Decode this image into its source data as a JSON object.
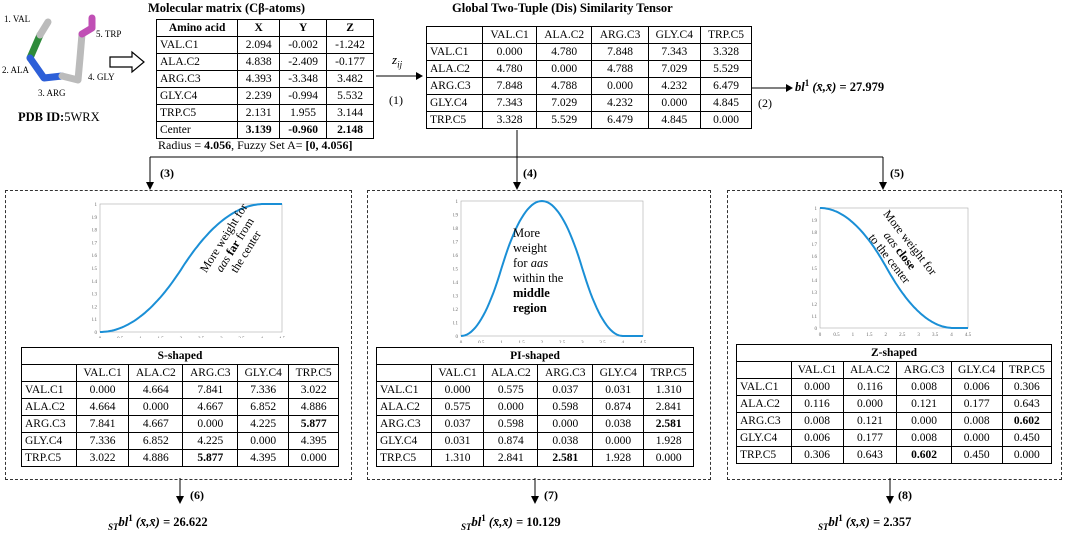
{
  "molecule": {
    "pdb_label": "PDB ID:",
    "pdb_id": "5WRX",
    "residues": [
      "1. VAL",
      "2. ALA",
      "3. ARG",
      "4. GLY",
      "5. TRP"
    ]
  },
  "molecular_matrix": {
    "title": "Molecular matrix (Cβ-atoms)",
    "headers": [
      "Amino acid",
      "X",
      "Y",
      "Z"
    ],
    "rows": [
      [
        "VAL.C1",
        "2.094",
        "-0.002",
        "-1.242"
      ],
      [
        "ALA.C2",
        "4.838",
        "-2.409",
        "-0.177"
      ],
      [
        "ARG.C3",
        "4.393",
        "-3.348",
        "3.482"
      ],
      [
        "GLY.C4",
        "2.239",
        "-0.994",
        "5.532"
      ],
      [
        "TRP.C5",
        "2.131",
        "1.955",
        "3.144"
      ],
      [
        "Center",
        "3.139",
        "-0.960",
        "2.148"
      ]
    ],
    "radius_label": "Radius = ",
    "radius_value": "4.056",
    "fuzzy_label": ", Fuzzy Set A= ",
    "fuzzy_value": "[0, 4.056]"
  },
  "zij_label": "z",
  "zij_sub": "ij",
  "step1": "(1)",
  "step2": "(2)",
  "tensor": {
    "title": "Global Two-Tuple (Dis) Similarity Tensor",
    "headers": [
      "",
      "VAL.C1",
      "ALA.C2",
      "ARG.C3",
      "GLY.C4",
      "TRP.C5"
    ],
    "rows": [
      [
        "VAL.C1",
        "0.000",
        "4.780",
        "7.848",
        "7.343",
        "3.328"
      ],
      [
        "ALA.C2",
        "4.780",
        "0.000",
        "4.788",
        "7.029",
        "5.529"
      ],
      [
        "ARG.C3",
        "7.848",
        "4.788",
        "0.000",
        "4.232",
        "6.479"
      ],
      [
        "GLY.C4",
        "7.343",
        "7.029",
        "4.232",
        "0.000",
        "4.845"
      ],
      [
        "TRP.C5",
        "3.328",
        "5.529",
        "6.479",
        "4.845",
        "0.000"
      ]
    ]
  },
  "global_bl": {
    "prefix": "bl",
    "sup": "1",
    "args": " (x̄,x̄) = ",
    "value": "27.979"
  },
  "panels": [
    {
      "step": "(3)",
      "annotation": [
        "More weight for",
        "aas far from",
        "the center"
      ],
      "table_title": "S-shaped",
      "headers": [
        "",
        "VAL.C1",
        "ALA.C2",
        "ARG.C3",
        "GLY.C4",
        "TRP.C5"
      ],
      "rows": [
        [
          "VAL.C1",
          "0.000",
          "4.664",
          "7.841",
          "7.336",
          "3.022"
        ],
        [
          "ALA.C2",
          "4.664",
          "0.000",
          "4.667",
          "6.852",
          "4.886"
        ],
        [
          "ARG.C3",
          "7.841",
          "4.667",
          "0.000",
          "4.225",
          "5.877"
        ],
        [
          "GLY.C4",
          "7.336",
          "6.852",
          "4.225",
          "0.000",
          "4.395"
        ],
        [
          "TRP.C5",
          "3.022",
          "4.886",
          "5.877",
          "4.395",
          "0.000"
        ]
      ],
      "result_step": "(6)",
      "result_sub": "ST",
      "result_value": "26.622"
    },
    {
      "step": "(4)",
      "annotation": [
        "More",
        "weight",
        "for aas",
        "within the",
        "middle",
        "region"
      ],
      "table_title": "PI-shaped",
      "headers": [
        "",
        "VAL.C1",
        "ALA.C2",
        "ARG.C3",
        "GLY.C4",
        "TRP.C5"
      ],
      "rows": [
        [
          "VAL.C1",
          "0.000",
          "0.575",
          "0.037",
          "0.031",
          "1.310"
        ],
        [
          "ALA.C2",
          "0.575",
          "0.000",
          "0.598",
          "0.874",
          "2.841"
        ],
        [
          "ARG.C3",
          "0.037",
          "0.598",
          "0.000",
          "0.038",
          "2.581"
        ],
        [
          "GLY.C4",
          "0.031",
          "0.874",
          "0.038",
          "0.000",
          "1.928"
        ],
        [
          "TRP.C5",
          "1.310",
          "2.841",
          "2.581",
          "1.928",
          "0.000"
        ]
      ],
      "result_step": "(7)",
      "result_sub": "ST",
      "result_value": "10.129"
    },
    {
      "step": "(5)",
      "annotation": [
        "More weight for",
        "aas close",
        "to the center"
      ],
      "table_title": "Z-shaped",
      "headers": [
        "",
        "VAL.C1",
        "ALA.C2",
        "ARG.C3",
        "GLY.C4",
        "TRP.C5"
      ],
      "rows": [
        [
          "VAL.C1",
          "0.000",
          "0.116",
          "0.008",
          "0.006",
          "0.306"
        ],
        [
          "ALA.C2",
          "0.116",
          "0.000",
          "0.121",
          "0.177",
          "0.643"
        ],
        [
          "ARG.C3",
          "0.008",
          "0.121",
          "0.000",
          "0.008",
          "0.602"
        ],
        [
          "GLY.C4",
          "0.006",
          "0.177",
          "0.008",
          "0.000",
          "0.450"
        ],
        [
          "TRP.C5",
          "0.306",
          "0.643",
          "0.602",
          "0.450",
          "0.000"
        ]
      ],
      "result_step": "(8)",
      "result_sub": "ST",
      "result_value": "2.357"
    }
  ],
  "curve_axes": {
    "x_ticks": [
      "0",
      "0.5",
      "1",
      "1.5",
      "2",
      "2.5",
      "3",
      "3.5",
      "4",
      "4.5"
    ],
    "y_ticks": [
      "0",
      "0.1",
      "0.2",
      "0.3",
      "0.4",
      "0.5",
      "0.6",
      "0.7",
      "0.8",
      "0.9",
      "1"
    ]
  },
  "colors": {
    "curve": "#1a8fd6",
    "val": "#2e8b3a",
    "ala": "#2d5fd8",
    "trp": "#c04fb5",
    "bond": "#bbbbbb"
  }
}
